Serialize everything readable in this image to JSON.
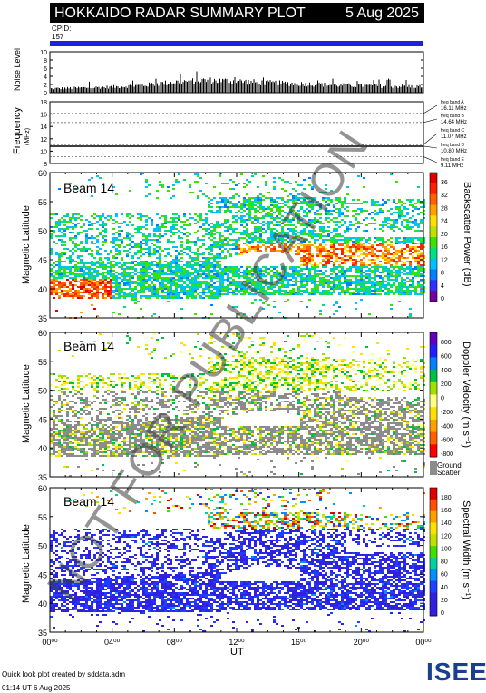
{
  "header": {
    "title": "HOKKAIDO RADAR SUMMARY PLOT",
    "date": "5 Aug 2025",
    "cpid_label": "CPID:",
    "cpid_value": "157"
  },
  "noise": {
    "ylabel": "Noise Level",
    "ylabel_small": "log",
    "ticks": [
      "10",
      "8",
      "6",
      "4",
      "2",
      "0"
    ]
  },
  "frequency": {
    "ylabel": "Frequency",
    "unit": "(MHz)",
    "ticks": [
      "18",
      "16",
      "14",
      "12",
      "10",
      "8"
    ],
    "bands": [
      {
        "label": "freq band A",
        "value": "16.11 MHz"
      },
      {
        "label": "freq band B",
        "value": "14.64 MHz"
      },
      {
        "label": "freq band C",
        "value": "11.07 MHz"
      },
      {
        "label": "freq band D",
        "value": "10.80 MHz"
      },
      {
        "label": "freq band E",
        "value": "9.11 MHz"
      }
    ]
  },
  "panels": [
    {
      "beam": "Beam 14",
      "ylabel": "Magnetic Latitude",
      "colorbar_label": "Backscatter Power (dB)",
      "cb_ticks": [
        "36",
        "32",
        "28",
        "24",
        "20",
        "16",
        "12",
        "8",
        "4",
        "0"
      ]
    },
    {
      "beam": "Beam 14",
      "ylabel": "Magnetic Latitude",
      "colorbar_label": "Doppler Velocity (m s⁻¹)",
      "cb_ticks": [
        "800",
        "600",
        "400",
        "200",
        "0",
        "-200",
        "-400",
        "-600",
        "-800"
      ],
      "ground_label": "Ground",
      "scatter_label": "Scatter"
    },
    {
      "beam": "Beam 14",
      "ylabel": "Magnetic Latitude",
      "colorbar_label": "Spectral Width (m s⁻¹)",
      "cb_ticks": [
        "180",
        "160",
        "140",
        "120",
        "100",
        "80",
        "60",
        "40",
        "20",
        "0"
      ]
    }
  ],
  "lat_ticks": [
    "60",
    "55",
    "50",
    "45",
    "40",
    "35"
  ],
  "x_ticks": [
    "00⁰⁰",
    "04⁰⁰",
    "08⁰⁰",
    "12⁰⁰",
    "16⁰⁰",
    "20⁰⁰",
    "00⁰⁰"
  ],
  "xlabel": "UT",
  "watermark": "NOT FOR PUBLICATION",
  "footer": {
    "credit": "Quick look plot created by sddata.adm",
    "stamp": "01:14 UT  6 Aug 2025",
    "logo": "ISEE"
  },
  "colors": {
    "cpid_bar": "#2020e0",
    "ground_scatter": "#8c8c8c",
    "power_scale": [
      "#7000a0",
      "#3030ff",
      "#0080ff",
      "#00c0ff",
      "#00e080",
      "#40e000",
      "#c0e000",
      "#ffe000",
      "#ffa000",
      "#ff6000",
      "#ff2000",
      "#e00000"
    ],
    "velocity_scale": [
      "#ff0000",
      "#ff6000",
      "#ffa000",
      "#ffe000",
      "#ffff80",
      "#a0e000",
      "#00c040",
      "#0080ff",
      "#2020ff",
      "#6000c0"
    ]
  },
  "chart_data": [
    {
      "type": "area",
      "title": "Noise Level",
      "ylim": [
        0,
        10
      ],
      "x_range_hours": [
        0,
        24
      ],
      "series": [
        {
          "x": [
            0,
            2,
            4,
            6,
            8,
            10,
            12,
            14,
            16,
            18,
            20,
            22,
            24
          ],
          "y": [
            1.0,
            1.2,
            1.4,
            1.8,
            2.6,
            3.0,
            2.8,
            2.4,
            2.2,
            1.9,
            1.7,
            1.6,
            1.5
          ]
        }
      ]
    },
    {
      "type": "line",
      "title": "Frequency",
      "ylim": [
        8,
        18
      ],
      "series": [
        {
          "x": [
            0,
            24
          ],
          "y": [
            10.8,
            10.8
          ]
        }
      ]
    },
    {
      "type": "heatmap",
      "title": "Backscatter Power (dB)",
      "ylim": [
        35,
        60
      ],
      "x_range_hours": [
        0,
        24
      ],
      "zlim": [
        0,
        36
      ]
    },
    {
      "type": "heatmap",
      "title": "Doppler Velocity (m s⁻¹)",
      "ylim": [
        35,
        60
      ],
      "x_range_hours": [
        0,
        24
      ],
      "zlim": [
        -800,
        800
      ]
    },
    {
      "type": "heatmap",
      "title": "Spectral Width (m s⁻¹)",
      "ylim": [
        35,
        60
      ],
      "x_range_hours": [
        0,
        24
      ],
      "zlim": [
        0,
        180
      ]
    }
  ]
}
